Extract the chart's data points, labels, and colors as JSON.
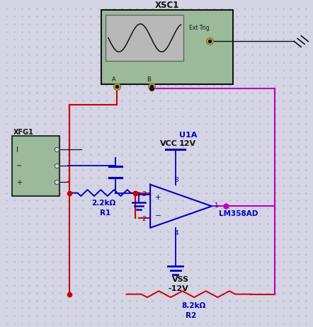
{
  "bg_color": "#d4d4e4",
  "dot_color": "#b0b0c8",
  "title": "XSC1",
  "xfg1_label": "XFG1",
  "vcc_label": "VCC",
  "vcc_val": "12V",
  "u1a_label": "U1A",
  "lm_label": "LM358AD",
  "vss_label": "VSS",
  "vss_val": "-12V",
  "r1_label": "R1",
  "r1_val": "2.2kΩ",
  "r2_label": "R2",
  "r2_val": "8.2kΩ",
  "blue": "#0000bb",
  "red": "#cc0000",
  "magenta": "#bb00bb",
  "black": "#111111",
  "green_bg": "#9aba9a",
  "scope_screen": "#b8b8b8",
  "ext_trig_label": "Ext Trig",
  "pin3": "3",
  "pin2": "2",
  "pin1": "1",
  "pin8": "8",
  "pin4": "4",
  "label_A": "A",
  "label_B": "B"
}
